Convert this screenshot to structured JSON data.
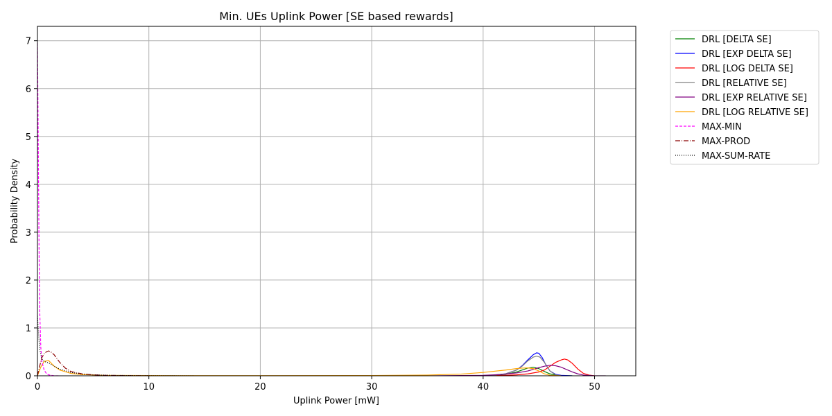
{
  "chart_data": {
    "type": "line",
    "title": "Min. UEs Uplink Power [SE based rewards]",
    "xlabel": "Uplink Power [mW]",
    "ylabel": "Probability Density",
    "xlim": [
      0,
      53.7
    ],
    "ylim": [
      0,
      7.3
    ],
    "xticks": [
      0,
      10,
      20,
      30,
      40,
      50
    ],
    "yticks": [
      0,
      1,
      2,
      3,
      4,
      5,
      6,
      7
    ],
    "grid": true,
    "legend_position": "outside-top-right",
    "series": [
      {
        "name": "DRL [DELTA SE]",
        "color": "#008000",
        "dash": "solid",
        "x": [
          40,
          41,
          42,
          43,
          43.5,
          44,
          44.5,
          45,
          45.5,
          46,
          46.5,
          47,
          48
        ],
        "y": [
          0.0,
          0.01,
          0.03,
          0.08,
          0.12,
          0.16,
          0.18,
          0.15,
          0.09,
          0.04,
          0.015,
          0.005,
          0.0
        ]
      },
      {
        "name": "DRL [EXP DELTA SE]",
        "color": "#0000ff",
        "dash": "solid",
        "x": [
          38,
          40,
          41,
          42,
          43,
          43.5,
          44,
          44.5,
          44.8,
          45,
          45.3,
          45.6,
          46,
          46.5,
          47,
          48
        ],
        "y": [
          0.0,
          0.005,
          0.015,
          0.04,
          0.12,
          0.21,
          0.33,
          0.44,
          0.48,
          0.47,
          0.38,
          0.24,
          0.1,
          0.03,
          0.01,
          0.0
        ]
      },
      {
        "name": "DRL [LOG DELTA SE]",
        "color": "#ff0000",
        "dash": "solid",
        "x": [
          40,
          42,
          43,
          44,
          45,
          45.5,
          46,
          46.5,
          47,
          47.3,
          47.6,
          48,
          48.5,
          49,
          49.5,
          50
        ],
        "y": [
          0.0,
          0.01,
          0.02,
          0.04,
          0.08,
          0.12,
          0.2,
          0.28,
          0.33,
          0.35,
          0.33,
          0.26,
          0.14,
          0.05,
          0.015,
          0.0
        ]
      },
      {
        "name": "DRL [RELATIVE SE]",
        "color": "#808080",
        "dash": "solid",
        "x": [
          38,
          40,
          41,
          42,
          43,
          43.5,
          44,
          44.5,
          44.8,
          45.1,
          45.5,
          46,
          46.5,
          47
        ],
        "y": [
          0.0,
          0.005,
          0.015,
          0.04,
          0.12,
          0.2,
          0.31,
          0.39,
          0.41,
          0.39,
          0.28,
          0.1,
          0.02,
          0.0
        ]
      },
      {
        "name": "DRL [EXP RELATIVE SE]",
        "color": "#800080",
        "dash": "solid",
        "x": [
          35,
          38,
          40,
          41,
          42,
          43,
          44,
          45,
          45.5,
          46,
          46.5,
          47,
          47.5,
          48,
          48.5,
          49,
          50,
          51
        ],
        "y": [
          0.0,
          0.005,
          0.01,
          0.02,
          0.035,
          0.06,
          0.1,
          0.17,
          0.2,
          0.22,
          0.21,
          0.18,
          0.13,
          0.08,
          0.04,
          0.015,
          0.0,
          0.0
        ]
      },
      {
        "name": "DRL [LOG RELATIVE SE]",
        "color": "#ffa500",
        "dash": "solid",
        "x": [
          0,
          0.3,
          0.6,
          1,
          1.5,
          2,
          3,
          4,
          6,
          10,
          20,
          30,
          35,
          38,
          40,
          41,
          42,
          43,
          43.5,
          44,
          44.5,
          45,
          45.5,
          46,
          47
        ],
        "y": [
          0.0,
          0.18,
          0.3,
          0.32,
          0.2,
          0.12,
          0.05,
          0.025,
          0.01,
          0.005,
          0.004,
          0.006,
          0.015,
          0.035,
          0.07,
          0.095,
          0.12,
          0.15,
          0.16,
          0.165,
          0.15,
          0.1,
          0.04,
          0.01,
          0.0
        ]
      },
      {
        "name": "MAX-MIN",
        "color": "#ff00ff",
        "dash": "4,2",
        "x": [
          0,
          0.05,
          0.1,
          0.15,
          0.2,
          0.3,
          0.4,
          0.6,
          0.8,
          1,
          1.5,
          2
        ],
        "y": [
          6.95,
          5.6,
          4.0,
          2.5,
          1.4,
          0.6,
          0.3,
          0.12,
          0.05,
          0.02,
          0.0,
          0.0
        ]
      },
      {
        "name": "MAX-PROD",
        "color": "#8b0000",
        "dash": "7,2,1,2",
        "x": [
          0,
          0.2,
          0.4,
          0.6,
          0.8,
          1,
          1.2,
          1.5,
          2,
          2.5,
          3,
          4,
          5,
          6,
          8,
          10
        ],
        "y": [
          0.0,
          0.2,
          0.38,
          0.46,
          0.5,
          0.52,
          0.5,
          0.44,
          0.28,
          0.16,
          0.09,
          0.04,
          0.02,
          0.01,
          0.004,
          0.0
        ]
      },
      {
        "name": "MAX-SUM-RATE",
        "color": "#000000",
        "dash": "1,2",
        "x": [
          0,
          0.1,
          0.2,
          0.4,
          0.6,
          1,
          1.5,
          2,
          3,
          4,
          5,
          7,
          10,
          14
        ],
        "y": [
          1.25,
          0.9,
          0.55,
          0.35,
          0.3,
          0.27,
          0.2,
          0.14,
          0.07,
          0.035,
          0.02,
          0.008,
          0.003,
          0.0
        ]
      }
    ]
  }
}
